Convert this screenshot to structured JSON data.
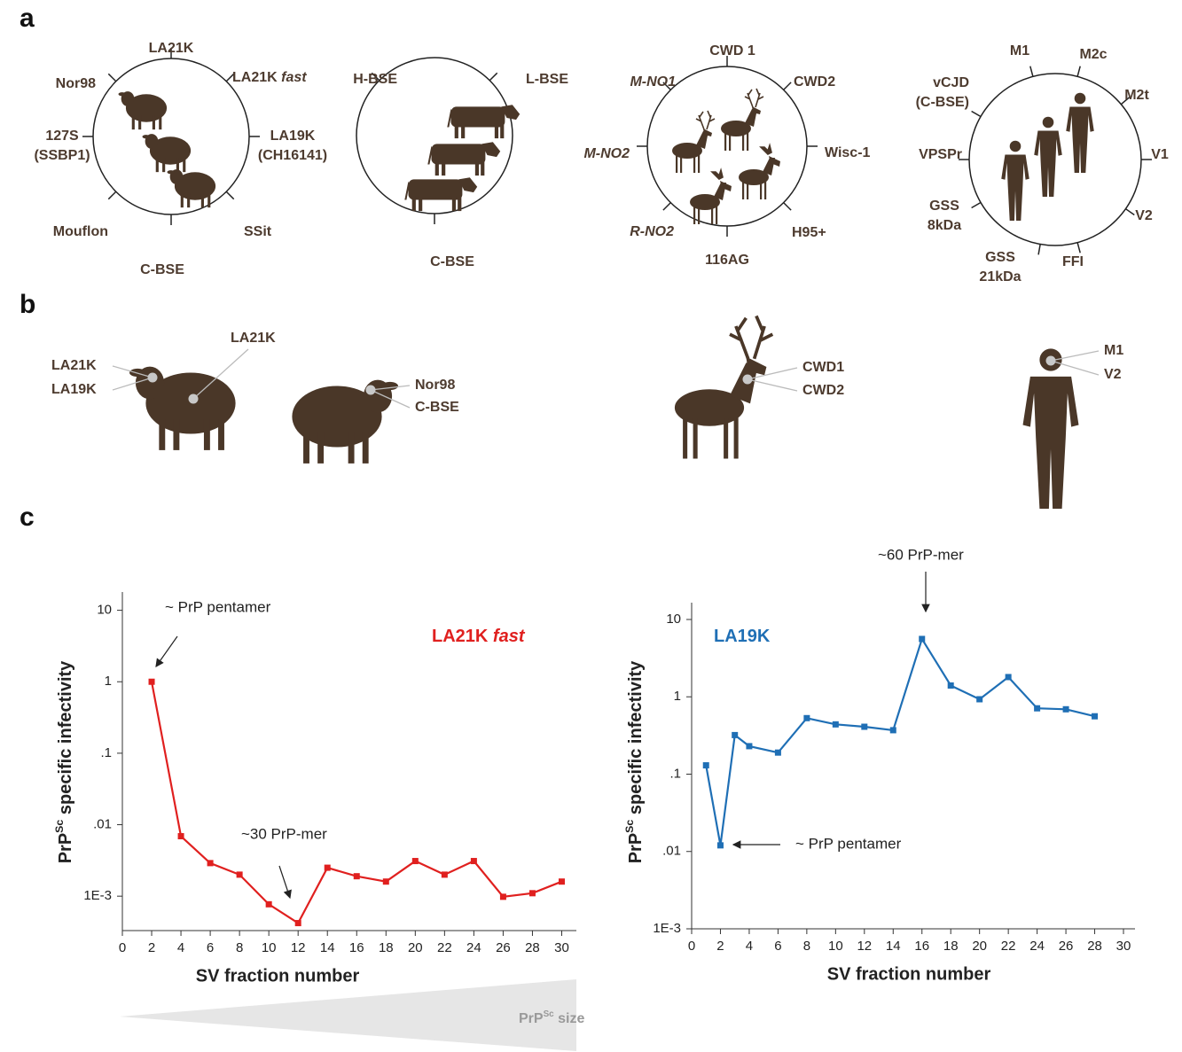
{
  "panel_letters": [
    "a",
    "b",
    "c"
  ],
  "circles": [
    {
      "labels": [
        {
          "lines": [
            "LA21K"
          ]
        },
        {
          "lines": [
            [
              {
                "text": "LA21K "
              },
              {
                "text": "fast",
                "italic": true
              }
            ]
          ]
        },
        {
          "lines": [
            "LA19K",
            "(CH16141)"
          ]
        },
        {
          "lines": [
            "SSit"
          ]
        },
        {
          "lines": [
            "C-BSE"
          ],
          "color": "#e0201f"
        },
        {
          "lines": [
            "Mouflon"
          ]
        },
        {
          "lines": [
            "127S",
            "(SSBP1)"
          ]
        },
        {
          "lines": [
            "Nor98"
          ]
        }
      ]
    },
    {
      "labels": [
        {
          "lines": [
            "H-BSE"
          ]
        },
        {
          "lines": [
            "L-BSE"
          ]
        },
        {
          "lines": [
            "C-BSE"
          ],
          "color": "#e0201f"
        }
      ]
    },
    {
      "labels": [
        {
          "lines": [
            "CWD 1"
          ]
        },
        {
          "lines": [
            "CWD2"
          ]
        },
        {
          "lines": [
            "Wisc-1"
          ]
        },
        {
          "lines": [
            "H95+"
          ]
        },
        {
          "lines": [
            "116AG"
          ]
        },
        {
          "lines": [
            "R-NO2"
          ],
          "italic": true
        },
        {
          "lines": [
            "M-NO2"
          ],
          "italic": true
        },
        {
          "lines": [
            "M-NO1"
          ],
          "italic": true
        }
      ]
    },
    {
      "labels": [
        {
          "lines": [
            "vCJD",
            "(C-BSE)"
          ],
          "color": "#e0201f"
        },
        {
          "lines": [
            "M1"
          ]
        },
        {
          "lines": [
            "M2c"
          ]
        },
        {
          "lines": [
            "M2t"
          ]
        },
        {
          "lines": [
            "V1"
          ]
        },
        {
          "lines": [
            "V2"
          ]
        },
        {
          "lines": [
            "FFI"
          ]
        },
        {
          "lines": [
            "GSS",
            "21kDa"
          ]
        },
        {
          "lines": [
            "GSS",
            "8kDa"
          ]
        },
        {
          "lines": [
            "VPSPr"
          ]
        }
      ]
    }
  ],
  "b_labels": [
    "LA21K",
    "LA19K",
    "LA21K",
    "Nor98",
    "C-BSE",
    "CWD1",
    "CWD2",
    "M1",
    "V2"
  ],
  "wedge_label": [
    {
      "text": "PrP"
    },
    {
      "text": "Sc",
      "sup": true
    },
    {
      "text": " size"
    }
  ],
  "chart_data": [
    {
      "type": "line",
      "log_y": true,
      "label": [
        {
          "text": "LA21K "
        },
        {
          "text": "fast",
          "italic": true
        }
      ],
      "annotations": [
        "~ PrP pentamer",
        "~30 PrP-mer"
      ],
      "xlabel": "SV fraction number",
      "ylabel": [
        {
          "text": "PrP"
        },
        {
          "text": "Sc",
          "sup": true
        },
        {
          "text": " specific infectivity"
        }
      ],
      "x": [
        2,
        4,
        6,
        8,
        10,
        12,
        14,
        16,
        18,
        20,
        22,
        24,
        26,
        28,
        30
      ],
      "series": [
        {
          "color": "#e0201f",
          "values": [
            1,
            0.0069,
            0.0029,
            0.002,
            0.00077,
            0.00042,
            0.0025,
            0.0019,
            0.0016,
            0.0031,
            0.002,
            0.0031,
            0.00098,
            0.0011,
            0.0016
          ]
        }
      ],
      "xlim": [
        0,
        31
      ],
      "xticks": [
        0,
        2,
        4,
        6,
        8,
        10,
        12,
        14,
        16,
        18,
        20,
        22,
        24,
        26,
        28,
        30
      ],
      "ylim": [
        0.00033,
        18
      ],
      "yticks": [
        {
          "value": 0.001,
          "label": "1E-3"
        },
        {
          "value": 0.01,
          "label": ".01"
        },
        {
          "value": 0.1,
          "label": ".1"
        },
        1,
        10
      ]
    },
    {
      "type": "line",
      "log_y": true,
      "label": [
        {
          "text": "LA19K"
        }
      ],
      "annotations": [
        "~60 PrP-mer",
        "~ PrP pentamer"
      ],
      "xlabel": "SV fraction number",
      "ylabel": [
        {
          "text": "PrP"
        },
        {
          "text": "Sc",
          "sup": true
        },
        {
          "text": " specific infectivity"
        }
      ],
      "x": [
        1,
        2,
        3,
        4,
        6,
        8,
        10,
        12,
        14,
        16,
        18,
        20,
        22,
        24,
        26,
        28
      ],
      "series": [
        {
          "color": "#1f6fb5",
          "values": [
            0.13,
            0.012,
            0.32,
            0.23,
            0.19,
            0.53,
            0.44,
            0.41,
            0.37,
            5.6,
            1.4,
            0.93,
            1.8,
            0.71,
            0.69,
            0.56
          ]
        }
      ],
      "xlim": [
        0,
        30.8
      ],
      "xticks": [
        0,
        2,
        4,
        6,
        8,
        10,
        12,
        14,
        16,
        18,
        20,
        22,
        24,
        26,
        28,
        30
      ],
      "ylim": [
        0.001,
        16.5
      ],
      "yticks": [
        {
          "value": 0.001,
          "label": "1E-3"
        },
        {
          "value": 0.01,
          "label": ".01"
        },
        {
          "value": 0.1,
          "label": ".1"
        },
        1,
        10
      ]
    }
  ]
}
